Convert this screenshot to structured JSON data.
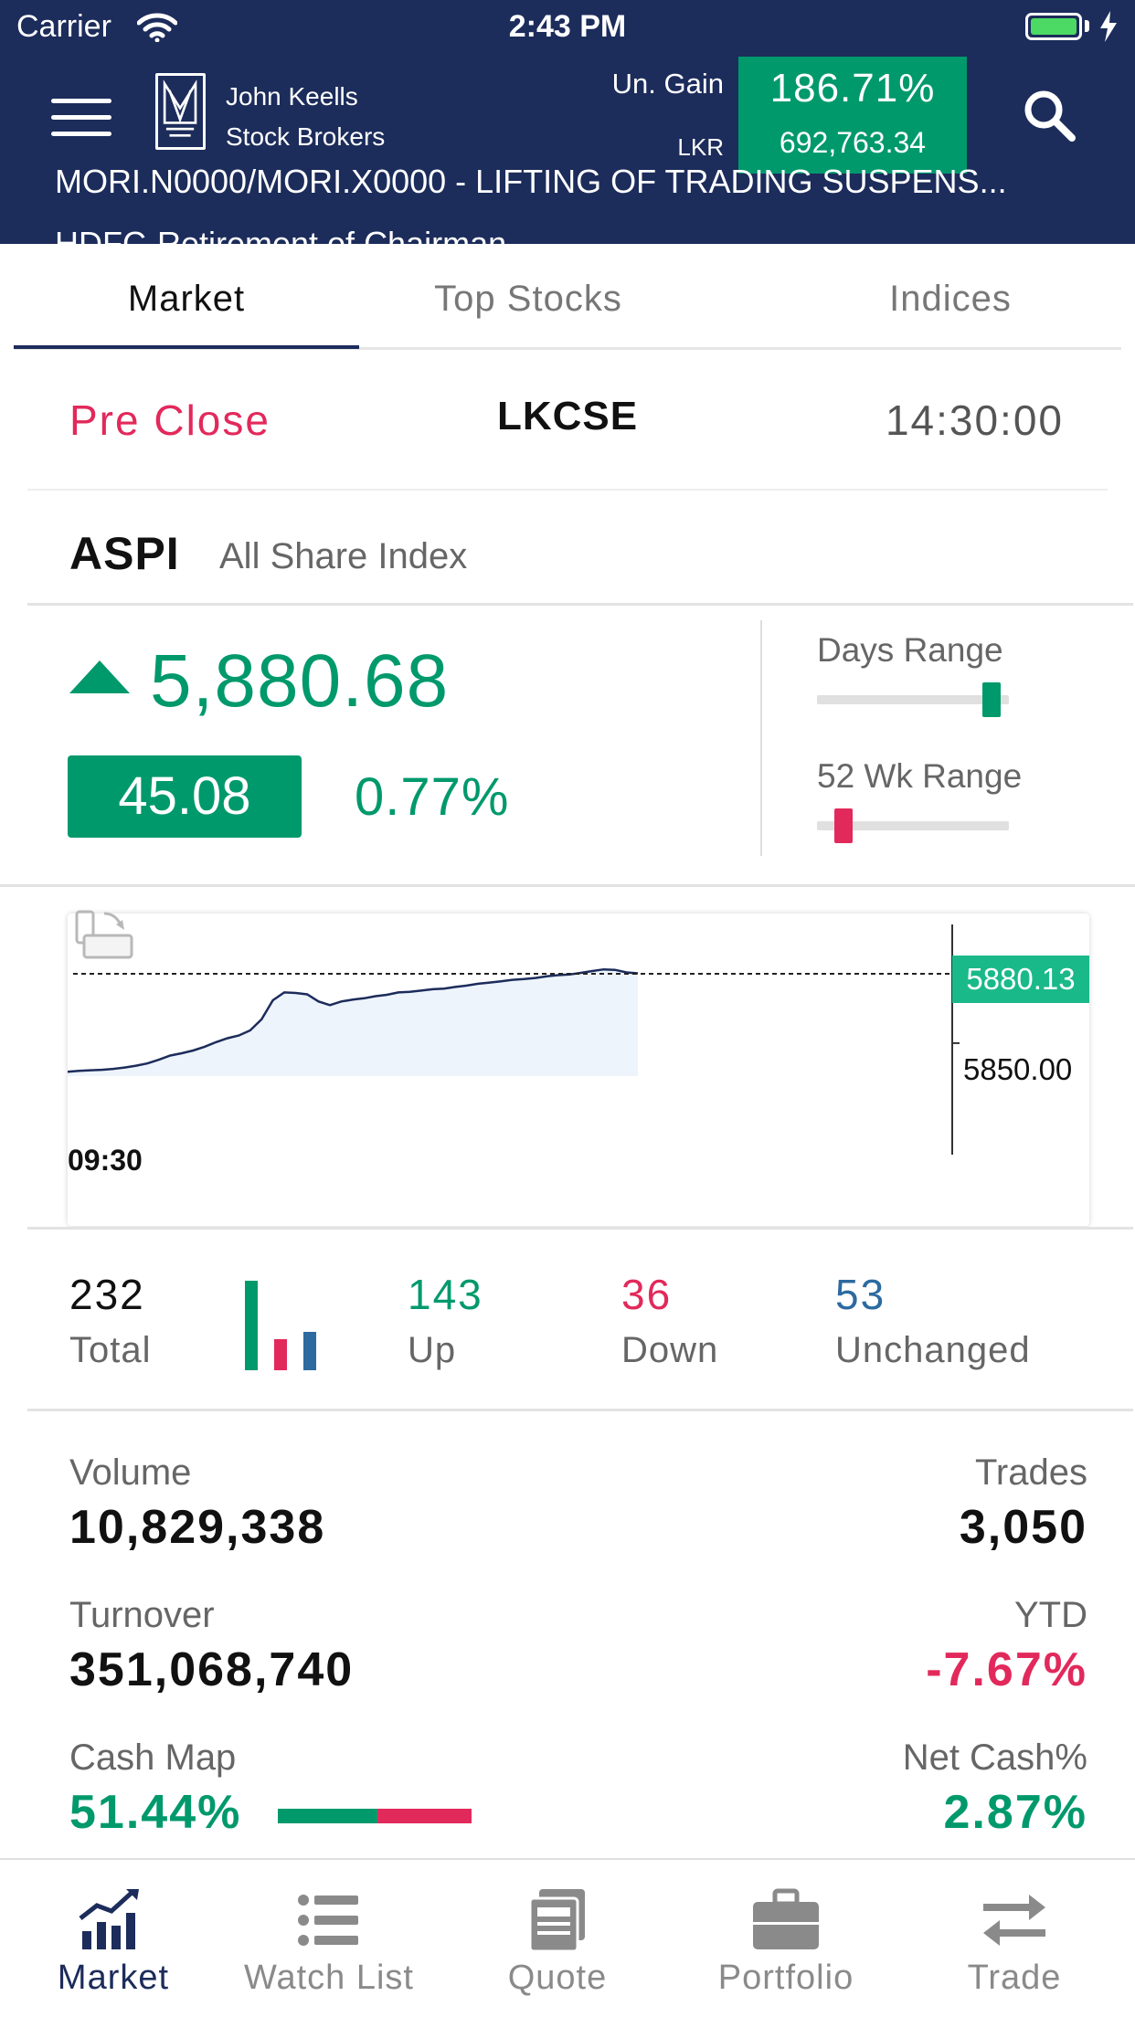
{
  "status_bar": {
    "carrier": "Carrier",
    "time": "2:43 PM"
  },
  "header": {
    "brand_line1": "John Keells",
    "brand_line2": "Stock Brokers",
    "gain_label": "Un. Gain",
    "gain_currency": "LKR",
    "gain_pct": "186.71%",
    "gain_value": "692,763.34",
    "ticker_1": "MORI.N0000/MORI.X0000 - LIFTING OF TRADING SUSPENS...",
    "ticker_2": "HDFC-Retirement of Chairman"
  },
  "tabs": [
    {
      "label": "Market"
    },
    {
      "label": "Top Stocks"
    },
    {
      "label": "Indices"
    }
  ],
  "exchange": {
    "status": "Pre Close",
    "name": "LKCSE",
    "time": "14:30:00"
  },
  "index": {
    "code": "ASPI",
    "name": "All Share Index",
    "value": "5,880.68",
    "change": "45.08",
    "change_pct": "0.77%",
    "days_range_label": "Days Range",
    "days_range_position": 0.95,
    "wk52_range_label": "52 Wk Range",
    "wk52_range_position": 0.1
  },
  "chart_data": {
    "type": "area",
    "x_start_label": "09:30",
    "last_price_label": "5880.13",
    "tick_label": "5850.00",
    "last_price": 5880.13,
    "tick_value": 5850.0,
    "ylim": [
      5835.68,
      5886.46
    ],
    "x": [
      0,
      2,
      4,
      6,
      8,
      10,
      12,
      14,
      16,
      18,
      20,
      22,
      24,
      26,
      28,
      30,
      32,
      34,
      36,
      38,
      40,
      42,
      44,
      46,
      48,
      50,
      52,
      54,
      56,
      58,
      60,
      62,
      64,
      66,
      68,
      70,
      72,
      74,
      76,
      78,
      80,
      82,
      84,
      86,
      88,
      90,
      92,
      94,
      96,
      98,
      100
    ],
    "y": [
      5837.6,
      5838.0,
      5838.2,
      5838.4,
      5838.8,
      5839.4,
      5840.2,
      5841.2,
      5842.8,
      5844.6,
      5845.6,
      5846.8,
      5848.4,
      5850.4,
      5852.1,
      5853.3,
      5855.5,
      5860.3,
      5868.6,
      5872.0,
      5871.8,
      5871.2,
      5868.1,
      5866.5,
      5868.1,
      5868.9,
      5869.5,
      5870.4,
      5871.0,
      5872.0,
      5872.3,
      5872.8,
      5873.4,
      5873.7,
      5874.4,
      5875.0,
      5875.8,
      5876.3,
      5876.8,
      5877.5,
      5877.8,
      5878.3,
      5879.0,
      5879.5,
      5879.8,
      5880.5,
      5881.3,
      5882.0,
      5881.8,
      5880.7,
      5880.3
    ]
  },
  "breadth": {
    "total": "232",
    "total_label": "Total",
    "up": "143",
    "up_label": "Up",
    "down": "36",
    "down_label": "Down",
    "unchanged": "53",
    "unchanged_label": "Unchanged"
  },
  "stats": {
    "volume_label": "Volume",
    "volume": "10,829,338",
    "trades_label": "Trades",
    "trades": "3,050",
    "turnover_label": "Turnover",
    "turnover": "351,068,740",
    "ytd_label": "YTD",
    "ytd": "-7.67%",
    "cash_map_label": "Cash Map",
    "cash_map": "51.44%",
    "cash_map_fraction": 0.5144,
    "net_cash_label": "Net Cash%",
    "net_cash": "2.87%"
  },
  "bottom_nav": [
    {
      "label": "Market",
      "icon": "market-chart-icon"
    },
    {
      "label": "Watch List",
      "icon": "list-icon"
    },
    {
      "label": "Quote",
      "icon": "quote-icon"
    },
    {
      "label": "Portfolio",
      "icon": "briefcase-icon"
    },
    {
      "label": "Trade",
      "icon": "swap-arrows-icon"
    }
  ],
  "colors": {
    "brand_navy": "#1c2c5b",
    "up_green": "#00996c",
    "down_red": "#e2295b",
    "unchanged_blue": "#2c6aa0",
    "price_tag_green": "#1ab98a"
  }
}
